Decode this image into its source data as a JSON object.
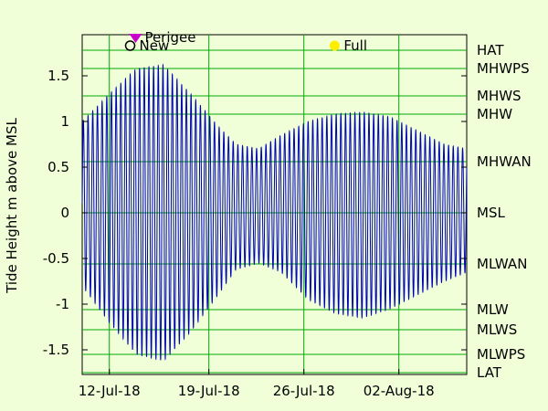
{
  "chart_data": {
    "type": "line",
    "title": "",
    "ylabel": "Tide Height m above MSL",
    "xlabel": "",
    "ylim": [
      -1.77,
      1.95
    ],
    "xlim": [
      0,
      42.5
    ],
    "grid": true,
    "yticks": [
      {
        "value": 1.5,
        "label": "1.5"
      },
      {
        "value": 1,
        "label": "1"
      },
      {
        "value": 0.5,
        "label": "0.5"
      },
      {
        "value": 0,
        "label": "0"
      },
      {
        "value": -0.5,
        "label": "-0.5"
      },
      {
        "value": -1,
        "label": "-1"
      },
      {
        "value": -1.5,
        "label": "-1.5"
      }
    ],
    "xticks": [
      {
        "value": 3,
        "label": "12-Jul-18"
      },
      {
        "value": 14,
        "label": "19-Jul-18"
      },
      {
        "value": 24.5,
        "label": "26-Jul-18"
      },
      {
        "value": 35,
        "label": "02-Aug-18"
      }
    ],
    "levels": [
      {
        "name": "HAT",
        "value": 1.78
      },
      {
        "name": "MHWPS",
        "value": 1.58
      },
      {
        "name": "MHWS",
        "value": 1.28
      },
      {
        "name": "MHW",
        "value": 1.08
      },
      {
        "name": "MHWAN",
        "value": 0.56
      },
      {
        "name": "MSL",
        "value": 0.0
      },
      {
        "name": "MLWAN",
        "value": -0.56
      },
      {
        "name": "MLW",
        "value": -1.06
      },
      {
        "name": "MLWS",
        "value": -1.28
      },
      {
        "name": "MLWPS",
        "value": -1.55
      },
      {
        "name": "LAT",
        "value": -1.75
      }
    ],
    "series": [
      {
        "name": "",
        "color": "#0000bb",
        "envelope_t": [
          0,
          3,
          6,
          9,
          12,
          15,
          17,
          19.5,
          22,
          25,
          28,
          31,
          34,
          37,
          40,
          42.5
        ],
        "high": [
          1.0,
          1.3,
          1.58,
          1.62,
          1.3,
          0.95,
          0.75,
          0.7,
          0.85,
          1.0,
          1.08,
          1.1,
          1.05,
          0.9,
          0.75,
          0.7
        ],
        "low": [
          -0.8,
          -1.2,
          -1.55,
          -1.62,
          -1.3,
          -0.9,
          -0.62,
          -0.55,
          -0.65,
          -0.95,
          -1.1,
          -1.15,
          -1.05,
          -0.9,
          -0.75,
          -0.65
        ]
      }
    ],
    "events": [
      {
        "name": "Perigee",
        "t": 5.9,
        "symbol": "triangle-down",
        "color": "#cc00cc"
      },
      {
        "name": "New",
        "t": 5.3,
        "symbol": "open-circle",
        "color": "#000000"
      },
      {
        "name": "Full",
        "t": 27.9,
        "symbol": "filled-circle",
        "color": "#ffee00"
      }
    ],
    "colors": {
      "background": "#f1ffd9",
      "plot_background": "#f1ffd9",
      "grid": "#00aa00",
      "axis": "#000000",
      "series": "#0000bb"
    }
  }
}
